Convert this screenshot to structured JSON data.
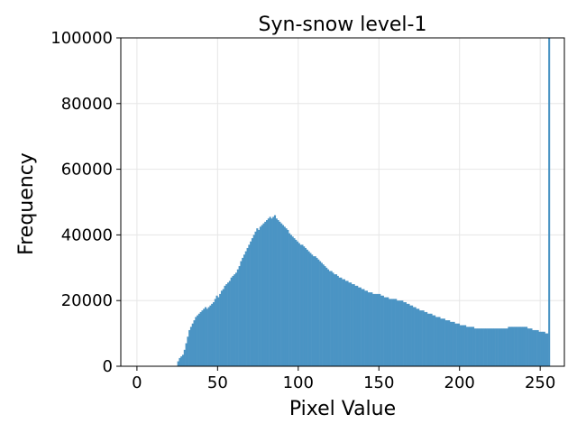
{
  "chart_data": {
    "type": "bar",
    "title": "Syn-snow level-1",
    "xlabel": "Pixel Value",
    "ylabel": "Frequency",
    "xlim": [
      -10,
      265
    ],
    "ylim": [
      0,
      100000
    ],
    "grid": true,
    "bar_color": "#4b94c4",
    "x_ticks": [
      0,
      50,
      100,
      150,
      200,
      250
    ],
    "y_ticks": [
      0,
      20000,
      40000,
      60000,
      80000,
      100000
    ],
    "bins": [
      [
        25,
        1500
      ],
      [
        26,
        2500
      ],
      [
        27,
        3000
      ],
      [
        28,
        3500
      ],
      [
        29,
        5000
      ],
      [
        30,
        7000
      ],
      [
        31,
        9000
      ],
      [
        32,
        11000
      ],
      [
        33,
        12000
      ],
      [
        34,
        13000
      ],
      [
        35,
        14000
      ],
      [
        36,
        15000
      ],
      [
        37,
        15500
      ],
      [
        38,
        16000
      ],
      [
        39,
        16500
      ],
      [
        40,
        17000
      ],
      [
        41,
        17500
      ],
      [
        42,
        18000
      ],
      [
        43,
        17500
      ],
      [
        44,
        18000
      ],
      [
        45,
        18500
      ],
      [
        46,
        19000
      ],
      [
        47,
        19500
      ],
      [
        48,
        20500
      ],
      [
        49,
        21500
      ],
      [
        50,
        21000
      ],
      [
        51,
        22000
      ],
      [
        52,
        23000
      ],
      [
        53,
        23500
      ],
      [
        54,
        24500
      ],
      [
        55,
        25000
      ],
      [
        56,
        25500
      ],
      [
        57,
        26000
      ],
      [
        58,
        27000
      ],
      [
        59,
        27500
      ],
      [
        60,
        28000
      ],
      [
        61,
        28500
      ],
      [
        62,
        29500
      ],
      [
        63,
        30500
      ],
      [
        64,
        32000
      ],
      [
        65,
        33000
      ],
      [
        66,
        34000
      ],
      [
        67,
        35000
      ],
      [
        68,
        36000
      ],
      [
        69,
        37000
      ],
      [
        70,
        38000
      ],
      [
        71,
        39000
      ],
      [
        72,
        40000
      ],
      [
        73,
        41000
      ],
      [
        74,
        42000
      ],
      [
        75,
        41500
      ],
      [
        76,
        42500
      ],
      [
        77,
        43000
      ],
      [
        78,
        43500
      ],
      [
        79,
        44000
      ],
      [
        80,
        44500
      ],
      [
        81,
        45000
      ],
      [
        82,
        45500
      ],
      [
        83,
        45000
      ],
      [
        84,
        45500
      ],
      [
        85,
        46000
      ],
      [
        86,
        45000
      ],
      [
        87,
        44500
      ],
      [
        88,
        44000
      ],
      [
        89,
        43500
      ],
      [
        90,
        43000
      ],
      [
        91,
        42500
      ],
      [
        92,
        42000
      ],
      [
        93,
        41500
      ],
      [
        94,
        40500
      ],
      [
        95,
        40000
      ],
      [
        96,
        39500
      ],
      [
        97,
        39000
      ],
      [
        98,
        38500
      ],
      [
        99,
        38000
      ],
      [
        100,
        37500
      ],
      [
        101,
        37000
      ],
      [
        102,
        37000
      ],
      [
        103,
        36500
      ],
      [
        104,
        36000
      ],
      [
        105,
        35500
      ],
      [
        106,
        35000
      ],
      [
        107,
        34500
      ],
      [
        108,
        34000
      ],
      [
        109,
        33500
      ],
      [
        110,
        33500
      ],
      [
        111,
        33000
      ],
      [
        112,
        32500
      ],
      [
        113,
        32000
      ],
      [
        114,
        31500
      ],
      [
        115,
        31000
      ],
      [
        116,
        30500
      ],
      [
        117,
        30000
      ],
      [
        118,
        29500
      ],
      [
        119,
        29000
      ],
      [
        120,
        29000
      ],
      [
        121,
        28500
      ],
      [
        122,
        28000
      ],
      [
        123,
        28000
      ],
      [
        124,
        27500
      ],
      [
        125,
        27000
      ],
      [
        126,
        27000
      ],
      [
        127,
        26500
      ],
      [
        128,
        26500
      ],
      [
        129,
        26000
      ],
      [
        130,
        26000
      ],
      [
        131,
        25500
      ],
      [
        132,
        25500
      ],
      [
        133,
        25000
      ],
      [
        134,
        25000
      ],
      [
        135,
        24500
      ],
      [
        136,
        24500
      ],
      [
        137,
        24000
      ],
      [
        138,
        24000
      ],
      [
        139,
        23500
      ],
      [
        140,
        23500
      ],
      [
        141,
        23000
      ],
      [
        142,
        23000
      ],
      [
        143,
        22500
      ],
      [
        144,
        22500
      ],
      [
        145,
        22500
      ],
      [
        146,
        22000
      ],
      [
        147,
        22000
      ],
      [
        148,
        22000
      ],
      [
        149,
        22000
      ],
      [
        150,
        22000
      ],
      [
        151,
        21500
      ],
      [
        152,
        21500
      ],
      [
        153,
        21000
      ],
      [
        154,
        21000
      ],
      [
        155,
        21000
      ],
      [
        156,
        20500
      ],
      [
        157,
        20500
      ],
      [
        158,
        20500
      ],
      [
        159,
        20500
      ],
      [
        160,
        20500
      ],
      [
        161,
        20000
      ],
      [
        162,
        20000
      ],
      [
        163,
        20000
      ],
      [
        164,
        20000
      ],
      [
        165,
        19500
      ],
      [
        166,
        19500
      ],
      [
        167,
        19000
      ],
      [
        168,
        19000
      ],
      [
        169,
        18500
      ],
      [
        170,
        18500
      ],
      [
        171,
        18000
      ],
      [
        172,
        18000
      ],
      [
        173,
        17500
      ],
      [
        174,
        17500
      ],
      [
        175,
        17000
      ],
      [
        176,
        17000
      ],
      [
        177,
        17000
      ],
      [
        178,
        16500
      ],
      [
        179,
        16500
      ],
      [
        180,
        16000
      ],
      [
        181,
        16000
      ],
      [
        182,
        16000
      ],
      [
        183,
        15500
      ],
      [
        184,
        15500
      ],
      [
        185,
        15000
      ],
      [
        186,
        15000
      ],
      [
        187,
        15000
      ],
      [
        188,
        14500
      ],
      [
        189,
        14500
      ],
      [
        190,
        14500
      ],
      [
        191,
        14000
      ],
      [
        192,
        14000
      ],
      [
        193,
        14000
      ],
      [
        194,
        13500
      ],
      [
        195,
        13500
      ],
      [
        196,
        13500
      ],
      [
        197,
        13000
      ],
      [
        198,
        13000
      ],
      [
        199,
        13000
      ],
      [
        200,
        12500
      ],
      [
        201,
        12500
      ],
      [
        202,
        12500
      ],
      [
        203,
        12500
      ],
      [
        204,
        12000
      ],
      [
        205,
        12000
      ],
      [
        206,
        12000
      ],
      [
        207,
        12000
      ],
      [
        208,
        12000
      ],
      [
        209,
        11500
      ],
      [
        210,
        11500
      ],
      [
        211,
        11500
      ],
      [
        212,
        11500
      ],
      [
        213,
        11500
      ],
      [
        214,
        11500
      ],
      [
        215,
        11500
      ],
      [
        216,
        11500
      ],
      [
        217,
        11500
      ],
      [
        218,
        11500
      ],
      [
        219,
        11500
      ],
      [
        220,
        11500
      ],
      [
        221,
        11500
      ],
      [
        222,
        11500
      ],
      [
        223,
        11500
      ],
      [
        224,
        11500
      ],
      [
        225,
        11500
      ],
      [
        226,
        11500
      ],
      [
        227,
        11500
      ],
      [
        228,
        11500
      ],
      [
        229,
        11500
      ],
      [
        230,
        12000
      ],
      [
        231,
        12000
      ],
      [
        232,
        12000
      ],
      [
        233,
        12000
      ],
      [
        234,
        12000
      ],
      [
        235,
        12000
      ],
      [
        236,
        12000
      ],
      [
        237,
        12000
      ],
      [
        238,
        12000
      ],
      [
        239,
        12000
      ],
      [
        240,
        12000
      ],
      [
        241,
        12000
      ],
      [
        242,
        11500
      ],
      [
        243,
        11500
      ],
      [
        244,
        11500
      ],
      [
        245,
        11000
      ],
      [
        246,
        11000
      ],
      [
        247,
        11000
      ],
      [
        248,
        11000
      ],
      [
        249,
        10500
      ],
      [
        250,
        10500
      ],
      [
        251,
        10500
      ],
      [
        252,
        10500
      ],
      [
        253,
        10000
      ],
      [
        254,
        10000
      ],
      [
        255,
        100000
      ]
    ]
  }
}
